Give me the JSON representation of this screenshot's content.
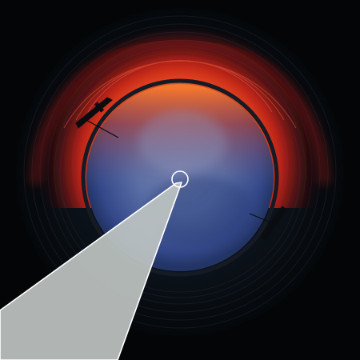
{
  "scene": {
    "subject": "little-planet-panorama-sunset",
    "colors": {
      "background": "#030507",
      "outer_water_dark": "#0b1118",
      "glow_red": "#e0241a",
      "glow_orange": "#ff6a2a",
      "horizon_ring": "#151a24",
      "sky_center": "#5a6fa6",
      "sky_edge": "#233566",
      "pointer_fill": "#bfc4c2",
      "pointer_stroke": "#ffffff"
    },
    "pointer": {
      "marker": "circle-marker",
      "shape": "view-cone"
    }
  }
}
